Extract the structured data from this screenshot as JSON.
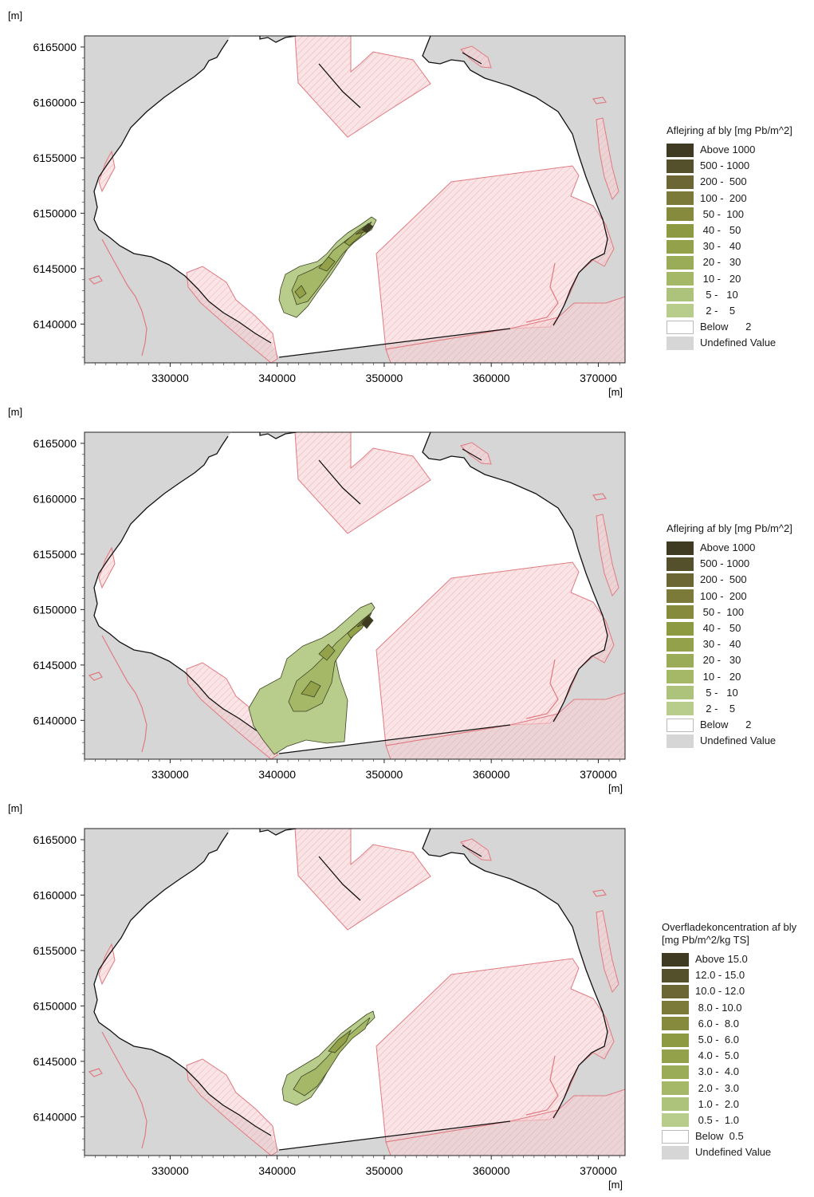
{
  "colors": {
    "land": "#d6d6d6",
    "water": "#ffffff",
    "zone_fill": "#f7d2d5",
    "zone_line": "#e07a80",
    "coast": "#111111"
  },
  "axis": {
    "unit_label": "[m]",
    "x_ticks": [
      "330000",
      "340000",
      "350000",
      "360000",
      "370000"
    ],
    "y_ticks": [
      "6165000",
      "6160000",
      "6155000",
      "6150000",
      "6145000",
      "6140000"
    ],
    "xlim": [
      322000,
      372500
    ],
    "ylim": [
      6136500,
      6166000
    ]
  },
  "panels": [
    {
      "legend": {
        "title": "Aflejring af bly [mg Pb/m^2]",
        "items": [
          {
            "label": "Above 1000",
            "color": "#3f3a22"
          },
          {
            "label": "500 - 1000",
            "color": "#55502c"
          },
          {
            "label": "200 -  500",
            "color": "#6b6634"
          },
          {
            "label": "100 -  200",
            "color": "#7b7a38"
          },
          {
            "label": " 50 -  100",
            "color": "#858a3c"
          },
          {
            "label": " 40 -   50",
            "color": "#8e9a42"
          },
          {
            "label": " 30 -   40",
            "color": "#93a24a"
          },
          {
            "label": " 20 -   30",
            "color": "#9bac58"
          },
          {
            "label": " 10 -   20",
            "color": "#a4b868"
          },
          {
            "label": "  5 -   10",
            "color": "#adc27a"
          },
          {
            "label": "  2 -    5",
            "color": "#b8cc8c"
          },
          {
            "label": "Below      2",
            "color": "#ffffff"
          },
          {
            "label": "Undefined Value",
            "color": "#d6d6d6"
          }
        ]
      }
    },
    {
      "legend": {
        "title": "Aflejring af bly [mg Pb/m^2]",
        "items": [
          {
            "label": "Above 1000",
            "color": "#3f3a22"
          },
          {
            "label": "500 - 1000",
            "color": "#55502c"
          },
          {
            "label": "200 -  500",
            "color": "#6b6634"
          },
          {
            "label": "100 -  200",
            "color": "#7b7a38"
          },
          {
            "label": " 50 -  100",
            "color": "#858a3c"
          },
          {
            "label": " 40 -   50",
            "color": "#8e9a42"
          },
          {
            "label": " 30 -   40",
            "color": "#93a24a"
          },
          {
            "label": " 20 -   30",
            "color": "#9bac58"
          },
          {
            "label": " 10 -   20",
            "color": "#a4b868"
          },
          {
            "label": "  5 -   10",
            "color": "#adc27a"
          },
          {
            "label": "  2 -    5",
            "color": "#b8cc8c"
          },
          {
            "label": "Below      2",
            "color": "#ffffff"
          },
          {
            "label": "Undefined Value",
            "color": "#d6d6d6"
          }
        ]
      }
    },
    {
      "legend": {
        "title": "Overfladekoncentration af bly [mg Pb/m^2/kg TS]",
        "items": [
          {
            "label": "Above 15.0",
            "color": "#3f3a22"
          },
          {
            "label": "12.0 - 15.0",
            "color": "#55502c"
          },
          {
            "label": "10.0 - 12.0",
            "color": "#6b6634"
          },
          {
            "label": " 8.0 - 10.0",
            "color": "#7b7a38"
          },
          {
            "label": " 6.0 -  8.0",
            "color": "#858a3c"
          },
          {
            "label": " 5.0 -  6.0",
            "color": "#8e9a42"
          },
          {
            "label": " 4.0 -  5.0",
            "color": "#93a24a"
          },
          {
            "label": " 3.0 -  4.0",
            "color": "#9bac58"
          },
          {
            "label": " 2.0 -  3.0",
            "color": "#a4b868"
          },
          {
            "label": " 1.0 -  2.0",
            "color": "#adc27a"
          },
          {
            "label": " 0.5 -  1.0",
            "color": "#b8cc8c"
          },
          {
            "label": "Below  0.5",
            "color": "#ffffff"
          },
          {
            "label": "Undefined Value",
            "color": "#d6d6d6"
          }
        ]
      }
    }
  ]
}
